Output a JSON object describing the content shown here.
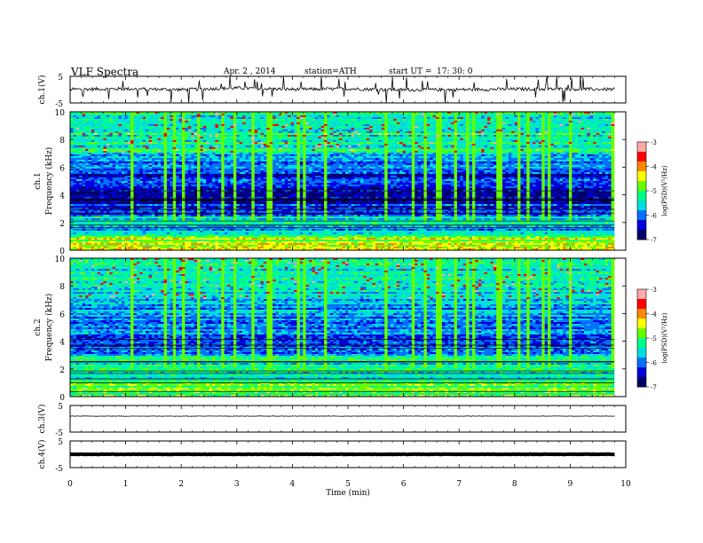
{
  "header": {
    "title": "VLF  Spectra",
    "date": "Apr. 2  , 2014",
    "station": "station=ATH",
    "start_label": "start  UT  =",
    "start_time": "17: 30: 0"
  },
  "colors": {
    "trace": "#000000",
    "colormap": [
      "#000066",
      "#0000dd",
      "#0070ff",
      "#00dddd",
      "#00ff88",
      "#66ff00",
      "#ffff00",
      "#ff8800",
      "#ff0000",
      "#ffaaaa"
    ]
  },
  "chart_data": [
    {
      "type": "line",
      "panel": "ch1-waveform",
      "ylabel": "ch.1(V)",
      "ylim": [
        -5,
        5
      ],
      "yticks": [
        "5",
        "-5"
      ],
      "xlim": [
        0,
        10
      ],
      "x": [
        0,
        1,
        2,
        3,
        4,
        5,
        6,
        7,
        8,
        9,
        9.8
      ],
      "values": [
        0.1,
        0.3,
        0.0,
        0.6,
        0.1,
        0.3,
        -0.1,
        0.0,
        0.2,
        0.2,
        0.1
      ]
    },
    {
      "type": "heatmap",
      "panel": "ch1-spectrogram",
      "ylabel": "Frequency  (kHz)",
      "channel_label": "ch.1",
      "xlim": [
        0,
        10
      ],
      "ylim": [
        0,
        10
      ],
      "yticks": [
        "0",
        "2",
        "4",
        "6",
        "8",
        "10"
      ],
      "colorbar": {
        "label": "log(PSD)(V²/Hz)",
        "range": [
          -7,
          -3
        ],
        "ticks": [
          "-3",
          "-4",
          "-5",
          "-6",
          "-7"
        ]
      },
      "band_levels_by_kHz": [
        {
          "from": 0,
          "to": 1,
          "level": -4.6
        },
        {
          "from": 1,
          "to": 2.5,
          "level": -5.6
        },
        {
          "from": 2.5,
          "to": 5.8,
          "level": -6.4
        },
        {
          "from": 5.8,
          "to": 7,
          "level": -5.9
        },
        {
          "from": 7,
          "to": 10,
          "level": -5.3
        }
      ]
    },
    {
      "type": "heatmap",
      "panel": "ch2-spectrogram",
      "ylabel": "Frequency  (kHz)",
      "channel_label": "ch.2",
      "xlim": [
        0,
        10
      ],
      "ylim": [
        0,
        10
      ],
      "yticks": [
        "0",
        "2",
        "4",
        "6",
        "8",
        "10"
      ],
      "colorbar": {
        "label": "log(PSD)(V²/Hz)",
        "range": [
          -7,
          -3
        ],
        "ticks": [
          "-3",
          "-4",
          "-5",
          "-6",
          "-7"
        ]
      },
      "band_levels_by_kHz": [
        {
          "from": 0,
          "to": 1,
          "level": -5.0
        },
        {
          "from": 1,
          "to": 3,
          "level": -5.4
        },
        {
          "from": 3,
          "to": 6,
          "level": -6.1
        },
        {
          "from": 6,
          "to": 7,
          "level": -5.8
        },
        {
          "from": 7,
          "to": 10,
          "level": -5.4
        }
      ]
    },
    {
      "type": "line",
      "panel": "ch3-waveform",
      "ylabel": "ch.3(V)",
      "ylim": [
        -5,
        5
      ],
      "yticks": [
        "5",
        "-5"
      ],
      "xlim": [
        0,
        10
      ],
      "x": [
        0,
        9.8
      ],
      "values": [
        1.0,
        1.0
      ]
    },
    {
      "type": "line",
      "panel": "ch4-waveform",
      "ylabel": "ch.4(V)",
      "ylim": [
        -5,
        5
      ],
      "yticks": [
        "5",
        "-5"
      ],
      "xlim": [
        0,
        10
      ],
      "x": [
        0,
        9.8
      ],
      "values": [
        0.0,
        0.0
      ]
    }
  ],
  "xaxis": {
    "label": "Time  (min)",
    "ticks": [
      "0",
      "1",
      "2",
      "3",
      "4",
      "5",
      "6",
      "7",
      "8",
      "9",
      "10"
    ]
  }
}
